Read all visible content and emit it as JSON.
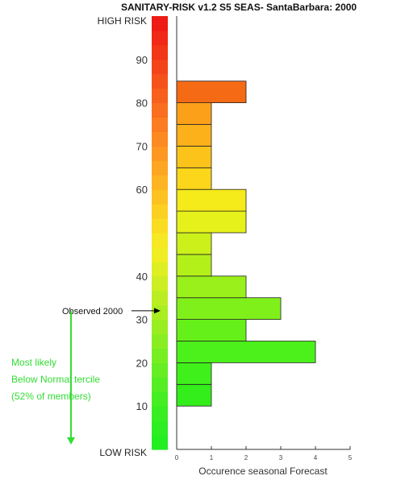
{
  "chart_data": {
    "type": "bar",
    "orientation": "horizontal",
    "title": "SANITARY-RISK v1.2 S5 SEAS- SantaBarbara: 2000",
    "xlabel": "Occurence seasonal Forecast",
    "xlim": [
      0,
      5
    ],
    "xticks": [
      "0",
      "1",
      "2",
      "3",
      "4",
      "5"
    ],
    "ylim": [
      0,
      100
    ],
    "yticks": [
      "10",
      "20",
      "30",
      "40",
      "60",
      "70",
      "80",
      "90"
    ],
    "risk_labels": {
      "high": "HIGH RISK",
      "low": "LOW RISK"
    },
    "bin_width": 5,
    "bins": [
      {
        "lo": 10,
        "hi": 15,
        "count": 1,
        "color": "#33ee1a"
      },
      {
        "lo": 15,
        "hi": 20,
        "count": 1,
        "color": "#3ff01a"
      },
      {
        "lo": 20,
        "hi": 25,
        "count": 4,
        "color": "#4cf01a"
      },
      {
        "lo": 25,
        "hi": 30,
        "count": 2,
        "color": "#66f01a"
      },
      {
        "lo": 30,
        "hi": 35,
        "count": 3,
        "color": "#80f01a"
      },
      {
        "lo": 35,
        "hi": 40,
        "count": 2,
        "color": "#99f01a"
      },
      {
        "lo": 40,
        "hi": 45,
        "count": 1,
        "color": "#b3f01a"
      },
      {
        "lo": 45,
        "hi": 50,
        "count": 1,
        "color": "#ccf01a"
      },
      {
        "lo": 50,
        "hi": 55,
        "count": 2,
        "color": "#e6f01a"
      },
      {
        "lo": 55,
        "hi": 60,
        "count": 2,
        "color": "#f5ea1a"
      },
      {
        "lo": 60,
        "hi": 65,
        "count": 1,
        "color": "#fcd61a"
      },
      {
        "lo": 65,
        "hi": 70,
        "count": 1,
        "color": "#fcc41a"
      },
      {
        "lo": 70,
        "hi": 75,
        "count": 1,
        "color": "#fcb01a"
      },
      {
        "lo": 75,
        "hi": 80,
        "count": 1,
        "color": "#fca01a"
      },
      {
        "lo": 80,
        "hi": 85,
        "count": 2,
        "color": "#f56a14"
      }
    ],
    "colorbar": [
      "#22ee22",
      "#2cee22",
      "#38ee22",
      "#44ee22",
      "#55ee22",
      "#66ee22",
      "#77ee22",
      "#88ee22",
      "#99ee22",
      "#aaee22",
      "#bbee22",
      "#ccee22",
      "#ddee22",
      "#eeee22",
      "#f6e822",
      "#fadc22",
      "#fcd022",
      "#fcc222",
      "#fcb422",
      "#fca622",
      "#fc9822",
      "#fc8a22",
      "#fc7c22",
      "#fa6e20",
      "#f8601e",
      "#f6521c",
      "#f4441a",
      "#f23618",
      "#f02816",
      "#ee1a14"
    ],
    "observed": {
      "label": "Observed 2000",
      "value": 32
    },
    "annotation": {
      "lines": [
        "Most likely",
        "Below Normal tercile",
        "(52% of members)"
      ],
      "color": "#33dd33",
      "arrow_from": 32,
      "arrow_to": 0
    },
    "grid": false
  }
}
